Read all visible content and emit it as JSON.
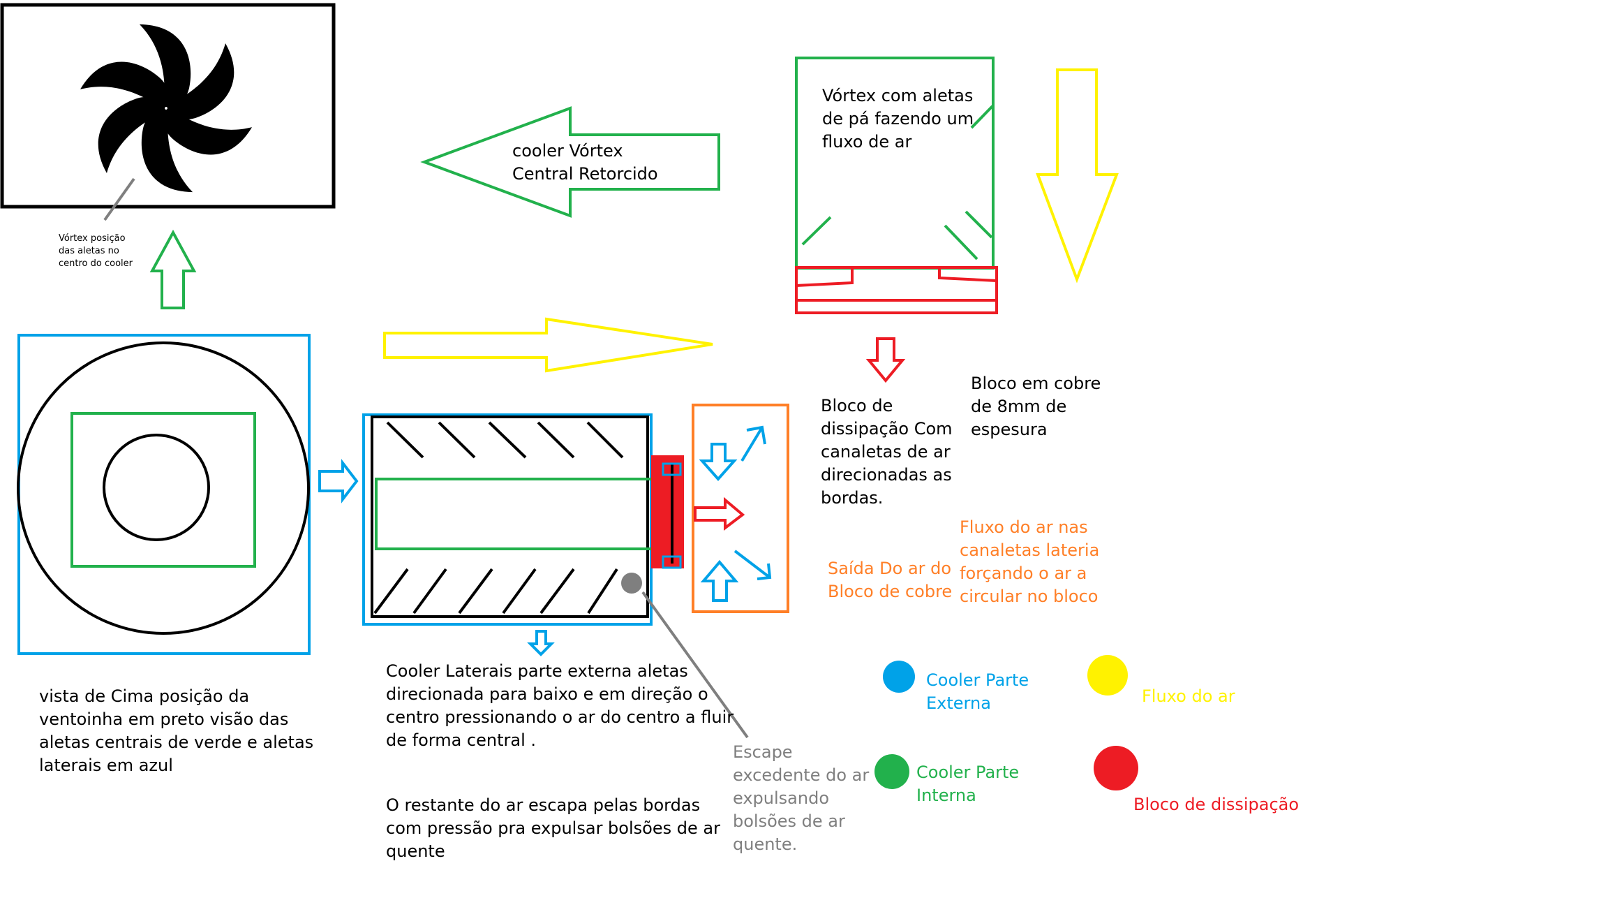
{
  "colors": {
    "black": "#000000",
    "green": "#22b14c",
    "blue": "#00a2e8",
    "yellow": "#fff200",
    "red": "#ed1c24",
    "orange": "#ff7f27",
    "gray": "#7f7f7f"
  },
  "labels": {
    "vortex_note": "Vórtex posição\ndas aletas no\ncentro do cooler",
    "cooler_vortex": "cooler Vórtex\nCentral Retorcido",
    "vortex_aletas": "Vórtex com aletas\nde pá fazendo um\nfluxo de ar",
    "bloco_dissipacao": "Bloco de\ndissipação Com\ncanaletas de ar\ndirecionadas as\nbordas.",
    "bloco_cobre": "Bloco em cobre\nde 8mm de\nespesura",
    "fluxo_canaletas": "Fluxo do ar nas\ncanaletas lateria\nforçando o ar a\ncircular no bloco",
    "saida_ar": "Saída Do ar do\nBloco de cobre",
    "vista_cima": "vista de Cima posição da\nventoinha em preto visão das\naletas centrais de verde e aletas\nlaterais em azul",
    "cooler_laterais": "Cooler Laterais parte externa aletas\ndirecionada para baixo e em direção o\ncentro pressionando o ar do centro a fluir\nde forma central .",
    "restante_ar": "O restante do ar escapa pelas bordas\ncom pressão pra expulsar bolsões de ar\nquente",
    "escape": "Escape\nexcedente do ar\nexpulsando\nbolsões de ar\nquente."
  },
  "legend": [
    {
      "label": "Cooler Parte\nExterna",
      "color": "#00a2e8"
    },
    {
      "label": "Fluxo do ar",
      "color": "#fff200"
    },
    {
      "label": "Cooler Parte\nInterna",
      "color": "#22b14c"
    },
    {
      "label": "Bloco de dissipação",
      "color": "#ed1c24"
    }
  ]
}
